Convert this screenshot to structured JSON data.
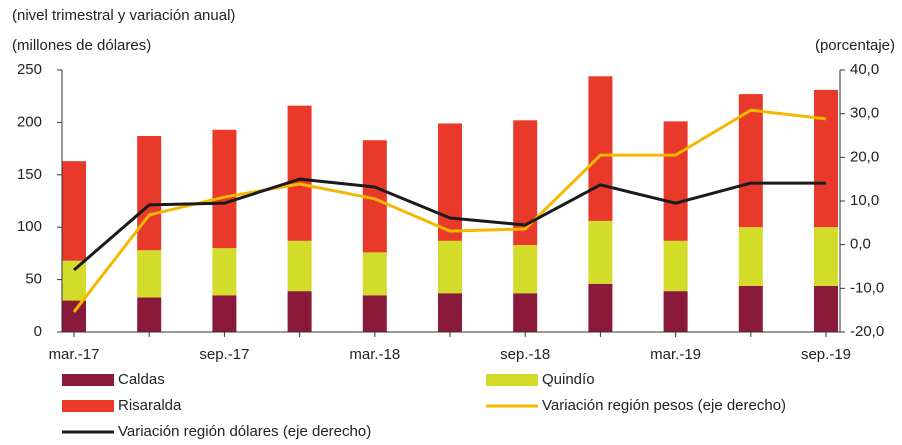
{
  "chart_data": {
    "type": "bar",
    "title": "(nivel trimestral y variación anual)",
    "ylabel": "(millones  de dólares)",
    "y2label": "(porcentaje)",
    "categories": [
      "mar.-17",
      null,
      "sep.-17",
      null,
      "mar.-18",
      null,
      "sep.-18",
      null,
      "mar.-19",
      null,
      "sep.-19"
    ],
    "stacked": true,
    "series": [
      {
        "name": "Caldas",
        "color": "#8b1a3a",
        "values": [
          30,
          33,
          35,
          39,
          35,
          37,
          37,
          46,
          39,
          44,
          44
        ]
      },
      {
        "name": "Quindío",
        "color": "#d4dc2a",
        "values": [
          38,
          45,
          45,
          48,
          41,
          50,
          46,
          60,
          48,
          56,
          56
        ]
      },
      {
        "name": "Risaralda",
        "color": "#e8392a",
        "values": [
          95,
          109,
          113,
          129,
          107,
          112,
          119,
          138,
          114,
          127,
          131
        ]
      },
      {
        "name": "Variación región pesos (eje derecho)",
        "type": "line",
        "axis": "y2",
        "color": "#f5b800",
        "values": [
          -15.4,
          6.8,
          10.9,
          13.9,
          10.5,
          3.1,
          3.6,
          20.5,
          20.5,
          30.8,
          28.8
        ]
      },
      {
        "name": "Variación región dólares (eje derecho)",
        "type": "line",
        "axis": "y2",
        "color": "#1a1a1a",
        "values": [
          -5.8,
          9.1,
          9.5,
          15.0,
          13.2,
          6.1,
          4.5,
          13.7,
          9.5,
          14.1,
          14.1
        ]
      }
    ],
    "ylim": [
      0,
      250
    ],
    "yticks": [
      0,
      50,
      100,
      150,
      200,
      250
    ],
    "y2lim": [
      -20,
      40
    ],
    "y2ticks": [
      {
        "value": -20,
        "label": "-20,0"
      },
      {
        "value": -10,
        "label": "-10,0"
      },
      {
        "value": 0,
        "label": "0,0"
      },
      {
        "value": 10,
        "label": "10,0"
      },
      {
        "value": 20,
        "label": "20,0"
      },
      {
        "value": 30,
        "label": "30,0"
      },
      {
        "value": 40,
        "label": "40,0"
      }
    ]
  }
}
